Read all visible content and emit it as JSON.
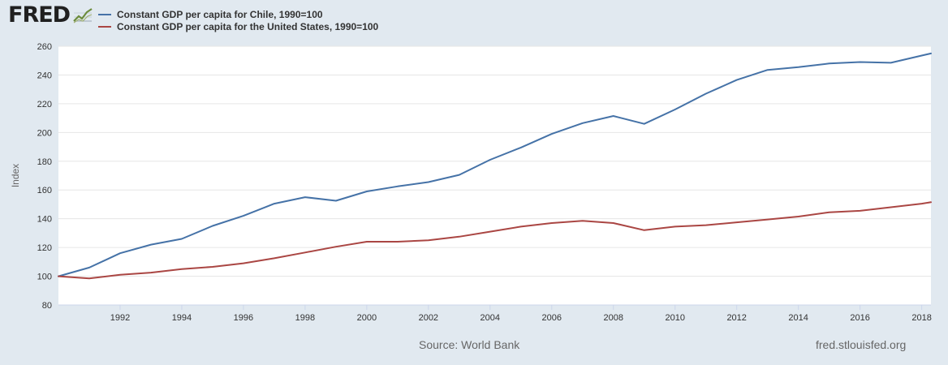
{
  "brand": {
    "name": "FRED",
    "mark": "chart-line-icon"
  },
  "colors": {
    "chile": "#4572a7",
    "us": "#aa4643",
    "grid": "#e6e6e6",
    "plot_bg": "#ffffff"
  },
  "chart_data": {
    "type": "line",
    "title": "",
    "xlabel": "",
    "ylabel": "Index",
    "ylim": [
      80,
      260
    ],
    "xlim": [
      1990,
      2018.3
    ],
    "yticks": [
      80,
      100,
      120,
      140,
      160,
      180,
      200,
      220,
      240,
      260
    ],
    "xticks": [
      1992,
      1994,
      1996,
      1998,
      2000,
      2002,
      2004,
      2006,
      2008,
      2010,
      2012,
      2014,
      2016,
      2018
    ],
    "legend_position": "top-left",
    "x": [
      1990,
      1991,
      1992,
      1993,
      1994,
      1995,
      1996,
      1997,
      1998,
      1999,
      2000,
      2001,
      2002,
      2003,
      2004,
      2005,
      2006,
      2007,
      2008,
      2009,
      2010,
      2011,
      2012,
      2013,
      2014,
      2015,
      2016,
      2017,
      2018,
      2018.3
    ],
    "series": [
      {
        "name": "Constant GDP per capita for Chile, 1990=100",
        "color": "#4572a7",
        "values": [
          100,
          106,
          116,
          122,
          126,
          135,
          142,
          150.5,
          155,
          152.5,
          159,
          162.5,
          165.5,
          170.5,
          181,
          189.5,
          199,
          206.5,
          211.5,
          206,
          216,
          227,
          236.5,
          243.5,
          245.5,
          248,
          249,
          248.5,
          253.5,
          255
        ]
      },
      {
        "name": "Constant GDP per capita for the United States, 1990=100",
        "color": "#aa4643",
        "values": [
          100,
          98.5,
          101,
          102.5,
          105,
          106.5,
          109,
          112.5,
          116.5,
          120.5,
          124,
          124,
          125,
          127.5,
          131,
          134.5,
          137,
          138.5,
          137,
          132,
          134.5,
          135.5,
          137.5,
          139.5,
          141.5,
          144.5,
          145.5,
          148,
          150.5,
          151.5
        ]
      }
    ]
  },
  "footer": {
    "source": "Source: World Bank",
    "site": "fred.stlouisfed.org"
  }
}
